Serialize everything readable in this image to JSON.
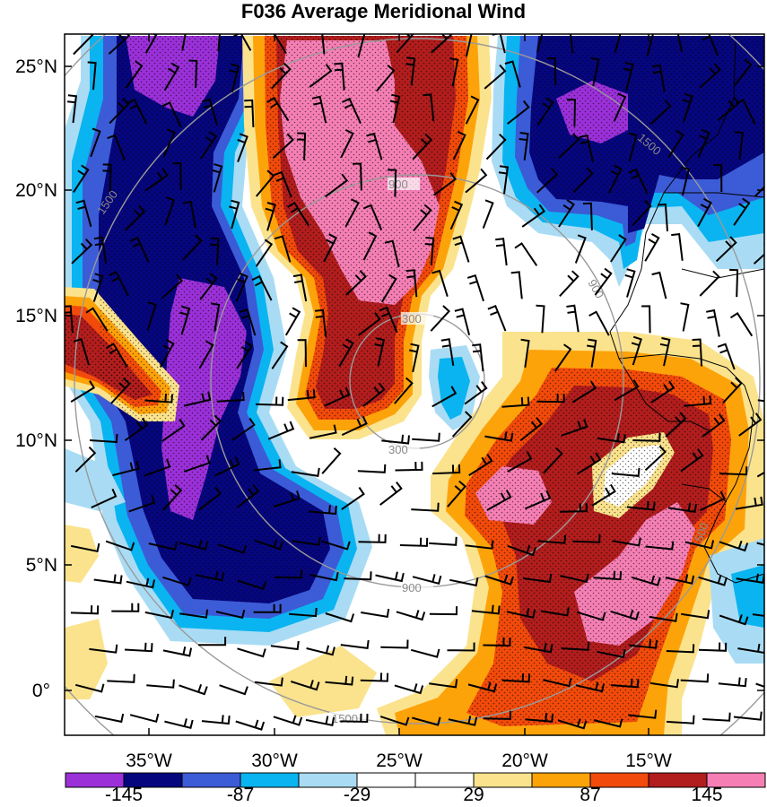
{
  "title": "F036 Average Meridional Wind",
  "palette": {
    "neg_extreme": "#9b30d9",
    "neg_strong": "#06067f",
    "neg_mod": "#3c5bd6",
    "neg_light": "#0ab4f0",
    "neg_weak": "#a9dcf4",
    "neutral": "#ffffff",
    "pos_weak": "#fbe38d",
    "pos_light": "#fda30a",
    "pos_mod": "#f24a0a",
    "pos_strong": "#b21d1d",
    "pos_extreme": "#f57fb4"
  },
  "map": {
    "lat_ticks": [
      "25°N",
      "20°N",
      "15°N",
      "10°N",
      "5°N",
      "0°"
    ],
    "lon_ticks": [
      "35°W",
      "30°W",
      "25°W",
      "20°W",
      "15°W"
    ],
    "range_ring_labels": [
      "300",
      "900",
      "1500"
    ]
  },
  "colorbar": {
    "colors": [
      "#9b30d9",
      "#06067f",
      "#3c5bd6",
      "#0ab4f0",
      "#a9dcf4",
      "#ffffff",
      "#ffffff",
      "#fbe38d",
      "#fda30a",
      "#f24a0a",
      "#b21d1d",
      "#f57fb4"
    ],
    "labels": [
      "-145",
      "-87",
      "-29",
      "29",
      "87",
      "145"
    ]
  }
}
